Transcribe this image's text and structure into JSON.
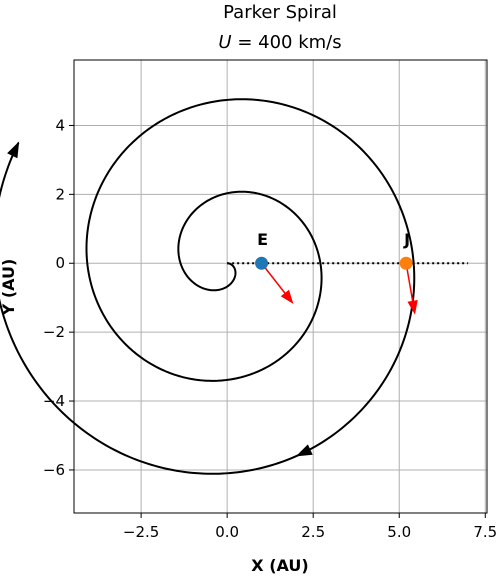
{
  "chart_data": {
    "type": "line",
    "title": "Parker Spiral",
    "subtitle_prefix": "U",
    "subtitle_value": "400 km/s",
    "xlabel": "X (AU)",
    "ylabel": "Y (AU)",
    "xlim": [
      -4.45,
      7.55
    ],
    "ylim": [
      -7.25,
      5.9
    ],
    "xticks": [
      -2.5,
      0.0,
      2.5,
      5.0,
      7.5
    ],
    "xtick_labels": [
      "−2.5",
      "0.0",
      "2.5",
      "5.0",
      "7.5"
    ],
    "yticks": [
      -6,
      -4,
      -2,
      0,
      2,
      4
    ],
    "ytick_labels": [
      "−6",
      "−4",
      "−2",
      "0",
      "2",
      "4"
    ],
    "grid": true,
    "spiral": {
      "theta_end_deg": 930,
      "r_end_au": 7.0,
      "start_at_angle_deg": 0,
      "color": "#000000"
    },
    "reference_line": {
      "from": [
        0,
        0
      ],
      "to": [
        7,
        0
      ],
      "style": "dotted",
      "color": "#000000"
    },
    "planets": [
      {
        "label": "E",
        "x": 1.0,
        "y": 0.0,
        "color": "#1f77b4",
        "arrow_to": [
          1.9,
          -1.15
        ],
        "arrow_color": "#ff0000"
      },
      {
        "label": "J",
        "x": 5.2,
        "y": 0.0,
        "color": "#ff7f0e",
        "arrow_to": [
          5.45,
          -1.45
        ],
        "arrow_color": "#ff0000"
      }
    ],
    "direction_arrows": [
      {
        "at_theta_deg": 790,
        "color": "#000000"
      },
      {
        "at_theta_deg": 930,
        "color": "#000000"
      }
    ]
  }
}
